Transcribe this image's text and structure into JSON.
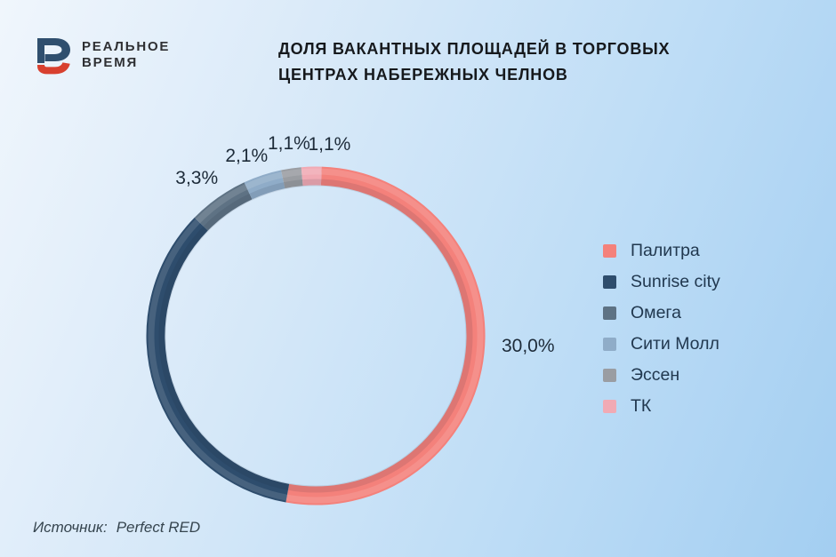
{
  "brand": {
    "name_line1": "РЕАЛЬНОЕ",
    "name_line2": "ВРЕМЯ",
    "logo_navy": "#2F4F6E",
    "logo_red": "#D8402F"
  },
  "title": {
    "line1": "ДОЛЯ ВАКАНТНЫХ ПЛОЩАДЕЙ В ТОРГОВЫХ",
    "line2": "ЦЕНТРАХ НАБЕРЕЖНЫХ ЧЕЛНОВ"
  },
  "source": {
    "label": "Источник:",
    "value": "Perfect RED"
  },
  "chart_data": {
    "type": "pie",
    "variant": "donut",
    "title": "ДОЛЯ ВАКАНТНЫХ ПЛОЩАДЕЙ В ТОРГОВЫХ ЦЕНТРАХ НАБЕРЕЖНЫХ ЧЕЛНОВ",
    "legend_position": "right",
    "direction": "clockwise",
    "start_angle_deg": 2,
    "grid": false,
    "segments": [
      {
        "name": "Палитра",
        "value": 30.0,
        "label": "30,0%",
        "color": "#F4817B"
      },
      {
        "name": "Sunrise city",
        "value": 19.8,
        "label": "",
        "color": "#2E4D6D"
      },
      {
        "name": "Омега",
        "value": 3.3,
        "label": "3,3%",
        "color": "#5E7284"
      },
      {
        "name": "Сити Молл",
        "value": 2.1,
        "label": "2,1%",
        "color": "#8FACC8"
      },
      {
        "name": "Эссен",
        "value": 1.1,
        "label": "1,1%",
        "color": "#9A9DA2"
      },
      {
        "name": "ТК",
        "value": 1.1,
        "label": "1,1%",
        "color": "#F1AAB4"
      }
    ]
  }
}
